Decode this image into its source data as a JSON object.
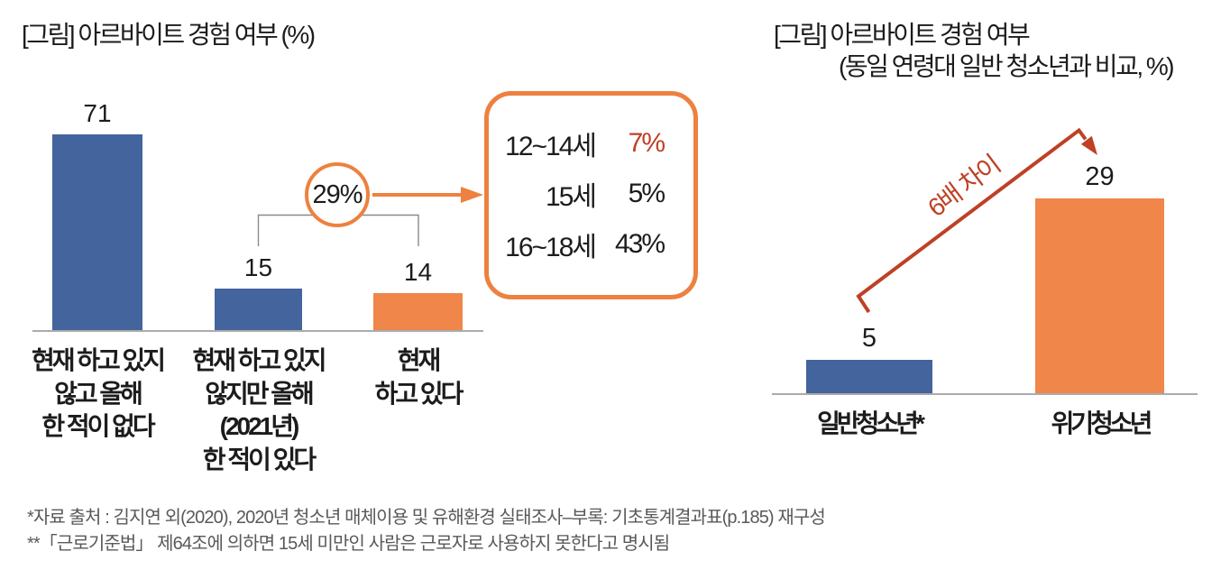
{
  "colors": {
    "blue": "#43649c",
    "orange": "#f0864a",
    "stroke_orange": "#ed813f",
    "dark_red": "#be4125",
    "text": "#1c1c1c",
    "axis_gray": "#ababab",
    "bracket_gray": "#8a8a8a",
    "footnote_gray": "#595959"
  },
  "chart_data": [
    {
      "type": "bar",
      "title": "[그림] 아르바이트 경험 여부 (%)",
      "categories": [
        "현재 하고 있지\n않고 올해\n한 적이 없다",
        "현재 하고 있지\n않지만 올해\n(2021년)\n한 적이 있다",
        "현재\n하고 있다"
      ],
      "values": [
        71,
        15,
        14
      ],
      "bar_colors": [
        "#43649c",
        "#43649c",
        "#f0864a"
      ],
      "xlabel": "",
      "ylabel": "",
      "ylim": [
        0,
        75
      ],
      "grid": false,
      "bracket": {
        "label": "29%",
        "covers": [
          "현재 하고 있지 않지만 올해 (2021년) 한 적이 있다",
          "현재 하고 있다"
        ]
      },
      "callout": {
        "rows": [
          {
            "label": "12~14세",
            "value": "7%",
            "highlight": true
          },
          {
            "label": "15세",
            "value": "5%",
            "highlight": false
          },
          {
            "label": "16~18세",
            "value": "43%",
            "highlight": false
          }
        ]
      }
    },
    {
      "type": "bar",
      "title_line1": "[그림] 아르바이트 경험 여부",
      "title_line2": "(동일 연령대 일반 청소년과 비교, %)",
      "categories": [
        "일반청소년*",
        "위기청소년"
      ],
      "values": [
        5,
        29
      ],
      "bar_colors": [
        "#43649c",
        "#f0864a"
      ],
      "xlabel": "",
      "ylabel": "",
      "ylim": [
        0,
        30
      ],
      "grid": false,
      "arrow_label": "6배 차이"
    }
  ],
  "footnotes": "*자료 출처 : 김지연 외(2020), 2020년 청소년 매체이용 및 유해환경 실태조사–부록: 기초통계결과표(p.185) 재구성\n**「근로기준법」 제64조에 의하면 15세 미만인 사람은 근로자로 사용하지 못한다고 명시됨"
}
